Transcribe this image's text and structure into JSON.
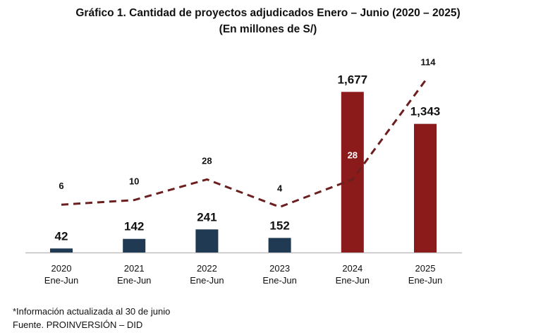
{
  "title": "Gráfico 1. Cantidad de proyectos adjudicados Enero – Junio (2020 – 2025)",
  "subtitle": "(En millones de S/)",
  "chart_data": {
    "type": "bar",
    "categories": [
      [
        "2020",
        "Ene-Jun"
      ],
      [
        "2021",
        "Ene-Jun"
      ],
      [
        "2022",
        "Ene-Jun"
      ],
      [
        "2023",
        "Ene-Jun"
      ],
      [
        "2024",
        "Ene-Jun"
      ],
      [
        "2025",
        "Ene-Jun"
      ]
    ],
    "series": [
      {
        "kind": "bar",
        "values": [
          42,
          142,
          241,
          152,
          1677,
          1343
        ],
        "labels": [
          "42",
          "142",
          "241",
          "152",
          "1,677",
          "1,343"
        ],
        "colors": [
          "#1f3a52",
          "#1f3a52",
          "#1f3a52",
          "#1f3a52",
          "#8b1a1a",
          "#8b1a1a"
        ]
      },
      {
        "kind": "line",
        "style": "dashed",
        "values": [
          6,
          10,
          28,
          4,
          28,
          114
        ],
        "labels": [
          "6",
          "10",
          "28",
          "4",
          "28",
          "114"
        ],
        "color": "#6b1f1f"
      }
    ],
    "ylim_bar": [
      0,
      1900
    ],
    "ylim_line": [
      0,
      140
    ],
    "grid": false,
    "legend": "none",
    "colors": {
      "bar_early": "#1f3a52",
      "bar_recent": "#8b1a1a",
      "line": "#6b1f1f",
      "axis": "#bfbfbf"
    }
  },
  "notes": [
    "*Información actualizada al 30 de junio",
    "Fuente. PROINVERSIÓN – DID"
  ]
}
